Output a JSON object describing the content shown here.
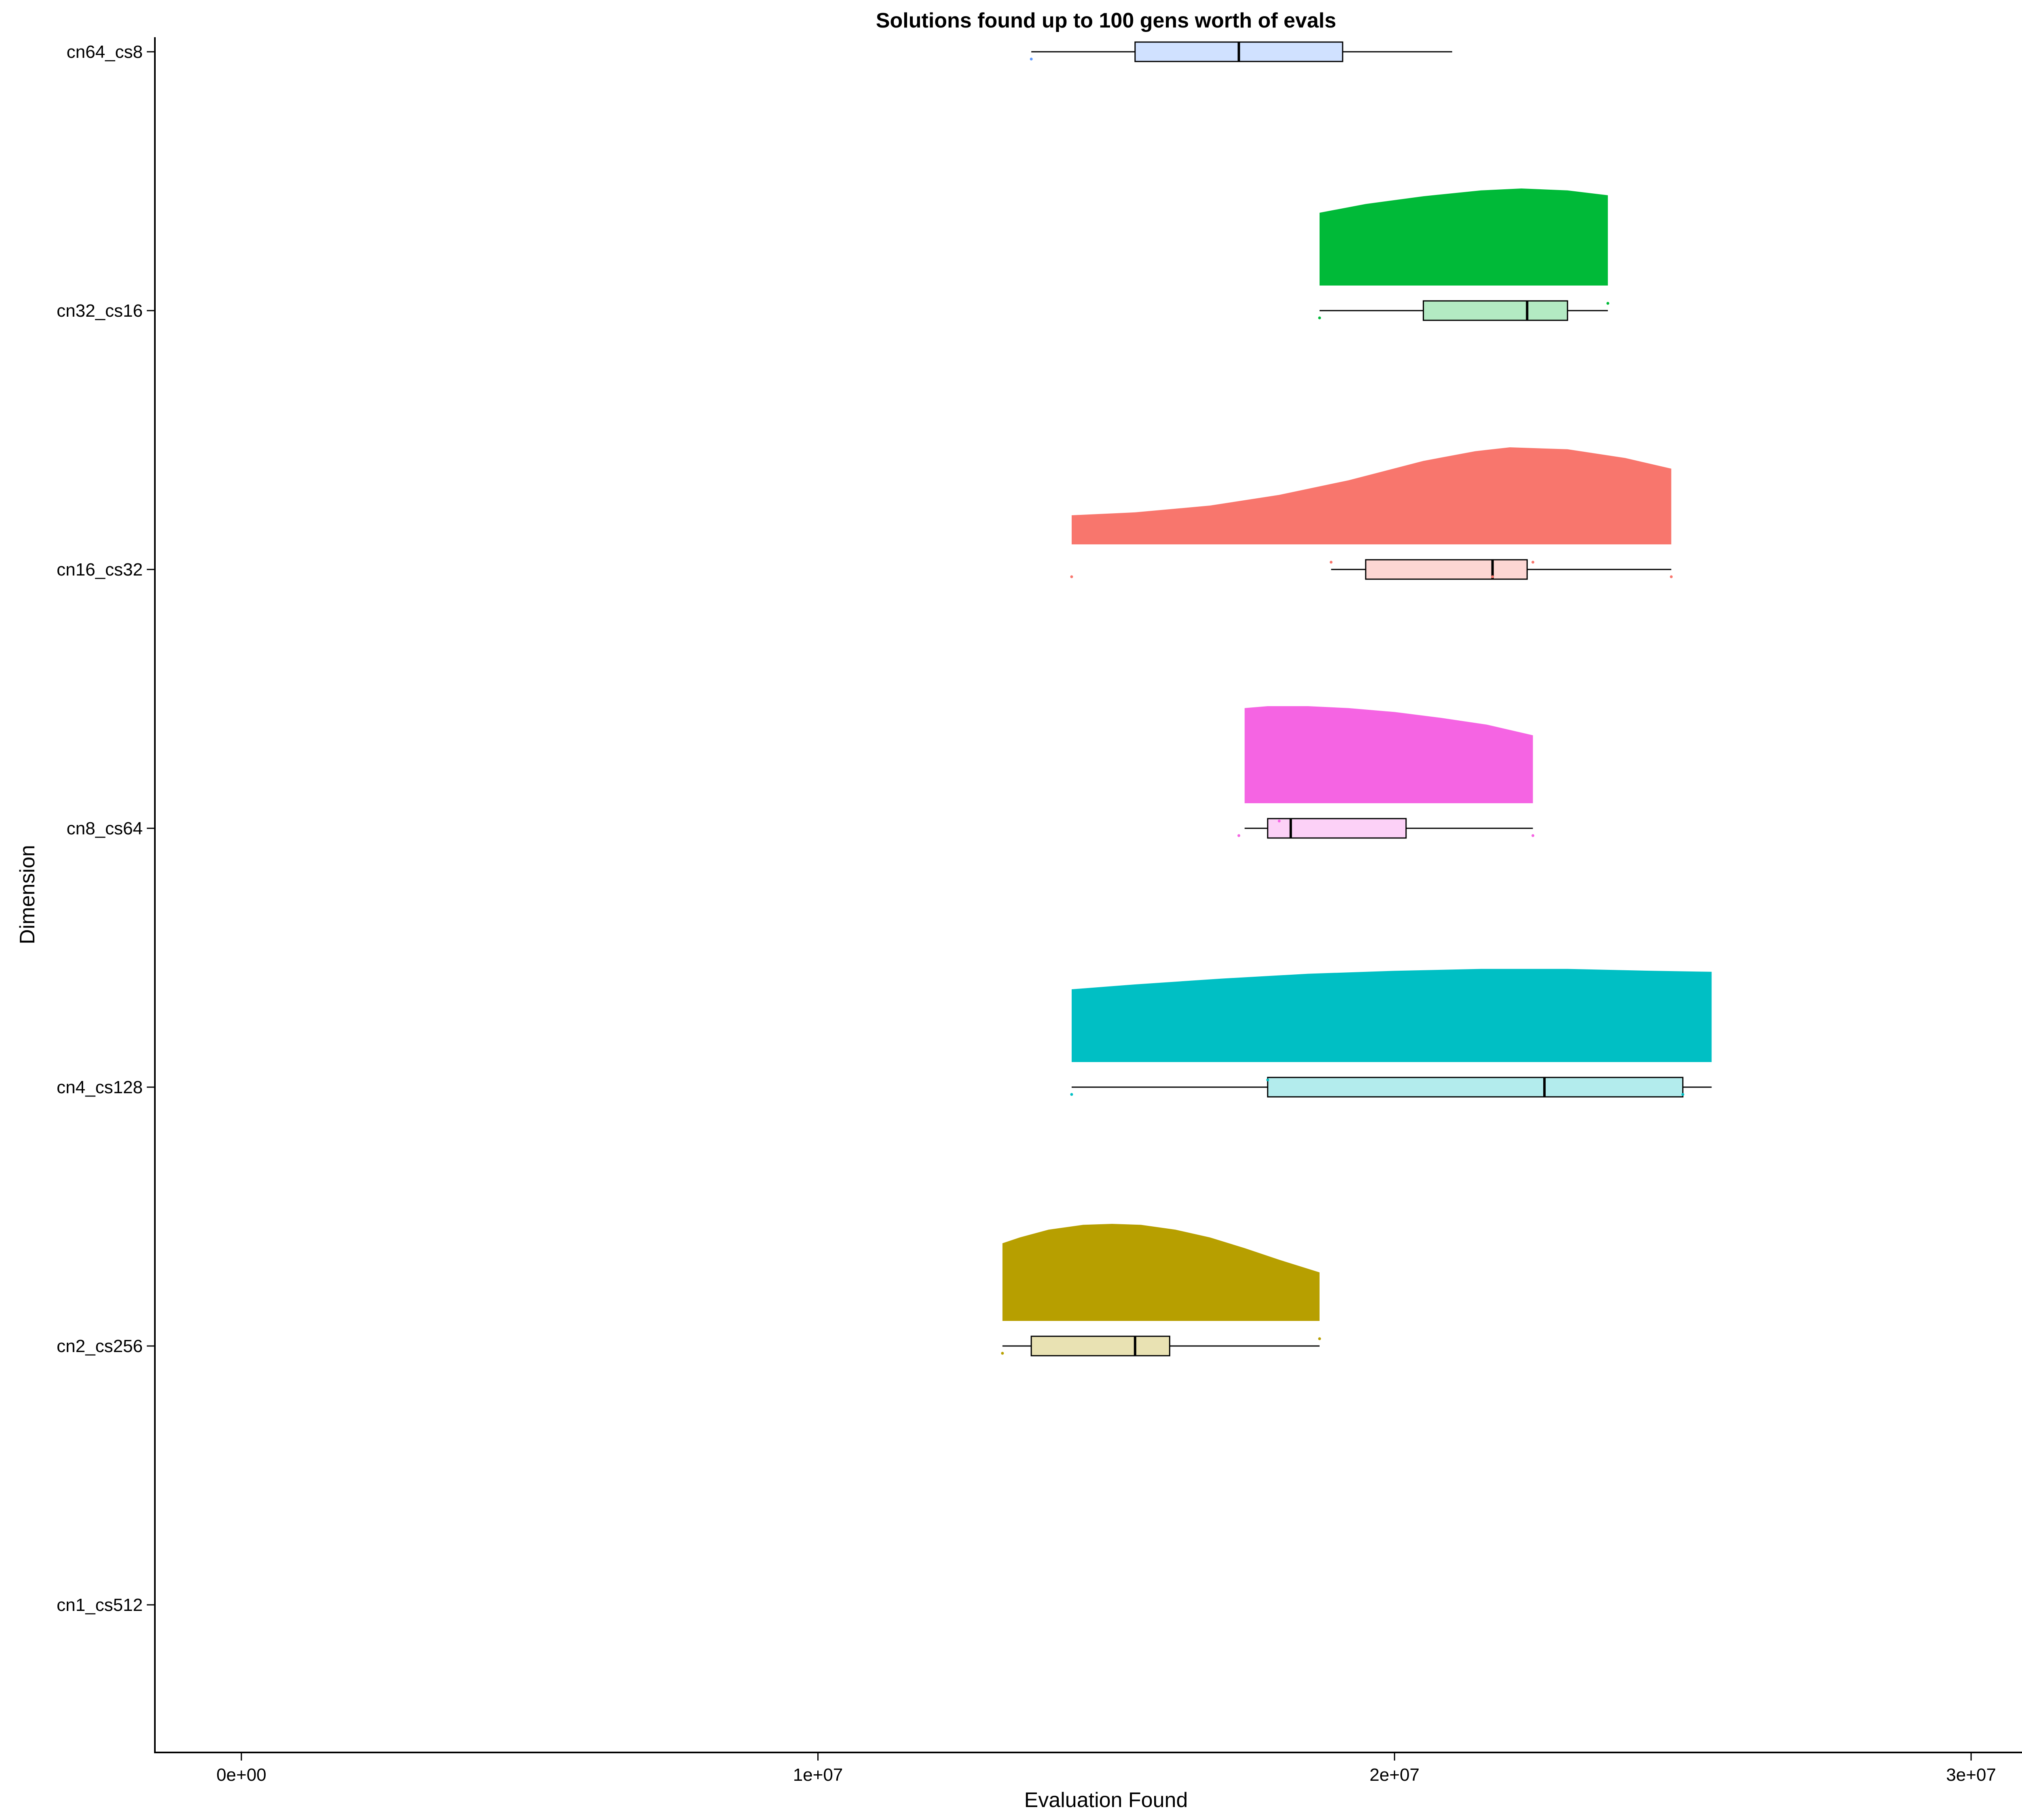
{
  "chart_data": {
    "type": "raincloud",
    "title": "Solutions found up to 100 gens worth of evals",
    "xlabel": "Evaluation Found",
    "ylabel": "Dimension",
    "xlim": [
      -1500000,
      31500000
    ],
    "x_ticks": [
      0,
      10000000,
      20000000,
      30000000
    ],
    "x_tick_labels": [
      "0e+00",
      "1e+07",
      "2e+07",
      "3e+07"
    ],
    "categories": [
      "cn1_cs512",
      "cn2_cs256",
      "cn4_cs128",
      "cn8_cs64",
      "cn16_cs32",
      "cn32_cs16",
      "cn64_cs8"
    ],
    "grid": false,
    "legend": "none",
    "series": [
      {
        "name": "cn1_cs512",
        "color": "#F8766D",
        "box": null,
        "density": null,
        "points": []
      },
      {
        "name": "cn2_cs256",
        "color": "#B79F00",
        "box": {
          "whisker_low": 13200000,
          "q1": 13700000,
          "median": 15500000,
          "q3": 16100000,
          "whisker_high": 18700000
        },
        "density": [
          [
            13200000,
            0.8
          ],
          [
            13500000,
            0.86
          ],
          [
            14000000,
            0.94
          ],
          [
            14600000,
            0.99
          ],
          [
            15100000,
            1.0
          ],
          [
            15600000,
            0.99
          ],
          [
            16200000,
            0.94
          ],
          [
            16800000,
            0.86
          ],
          [
            17400000,
            0.75
          ],
          [
            18000000,
            0.63
          ],
          [
            18700000,
            0.5
          ]
        ],
        "points": [
          13200000,
          18700000
        ]
      },
      {
        "name": "cn4_cs128",
        "color": "#00BFC4",
        "box": {
          "whisker_low": 14400000,
          "q1": 17800000,
          "median": 22600000,
          "q3": 25000000,
          "whisker_high": 25500000
        },
        "density": [
          [
            14400000,
            0.75
          ],
          [
            15500000,
            0.8
          ],
          [
            17000000,
            0.86
          ],
          [
            18500000,
            0.91
          ],
          [
            20000000,
            0.94
          ],
          [
            21500000,
            0.96
          ],
          [
            23000000,
            0.96
          ],
          [
            24500000,
            0.94
          ],
          [
            25500000,
            0.93
          ]
        ],
        "points": [
          14400000,
          17800000,
          25000000
        ]
      },
      {
        "name": "cn8_cs64",
        "color": "#F564E3",
        "box": {
          "whisker_low": 17400000,
          "q1": 17800000,
          "median": 18200000,
          "q3": 20200000,
          "whisker_high": 22400000
        },
        "density": [
          [
            17400000,
            0.98
          ],
          [
            17800000,
            1.0
          ],
          [
            18500000,
            1.0
          ],
          [
            19200000,
            0.98
          ],
          [
            20000000,
            0.94
          ],
          [
            20800000,
            0.88
          ],
          [
            21600000,
            0.81
          ],
          [
            22400000,
            0.7
          ]
        ],
        "points": [
          17300000,
          18000000,
          22400000
        ]
      },
      {
        "name": "cn16_cs32",
        "color": "#F8766D",
        "box": {
          "whisker_low": 18900000,
          "q1": 19500000,
          "median": 21700000,
          "q3": 22300000,
          "whisker_high": 24800000
        },
        "density": [
          [
            14400000,
            0.3
          ],
          [
            15500000,
            0.33
          ],
          [
            16800000,
            0.4
          ],
          [
            18000000,
            0.51
          ],
          [
            19200000,
            0.66
          ],
          [
            20500000,
            0.86
          ],
          [
            21400000,
            0.96
          ],
          [
            22000000,
            1.0
          ],
          [
            23000000,
            0.98
          ],
          [
            24000000,
            0.89
          ],
          [
            24800000,
            0.78
          ]
        ],
        "points": [
          14400000,
          18900000,
          21700000,
          22400000,
          24800000
        ]
      },
      {
        "name": "cn32_cs16",
        "color": "#00BA38",
        "box": {
          "whisker_low": 18700000,
          "q1": 20500000,
          "median": 22300000,
          "q3": 23000000,
          "whisker_high": 23700000
        },
        "density": [
          [
            18700000,
            0.75
          ],
          [
            19500000,
            0.84
          ],
          [
            20500000,
            0.92
          ],
          [
            21500000,
            0.98
          ],
          [
            22200000,
            1.0
          ],
          [
            23000000,
            0.98
          ],
          [
            23700000,
            0.93
          ]
        ],
        "points": [
          18700000,
          23700000
        ]
      },
      {
        "name": "cn64_cs8",
        "color": "#619CFF",
        "box": {
          "whisker_low": 13700000,
          "q1": 15500000,
          "median": 17300000,
          "q3": 19100000,
          "whisker_high": 21000000
        },
        "density": null,
        "points": [
          13700000
        ]
      }
    ]
  }
}
